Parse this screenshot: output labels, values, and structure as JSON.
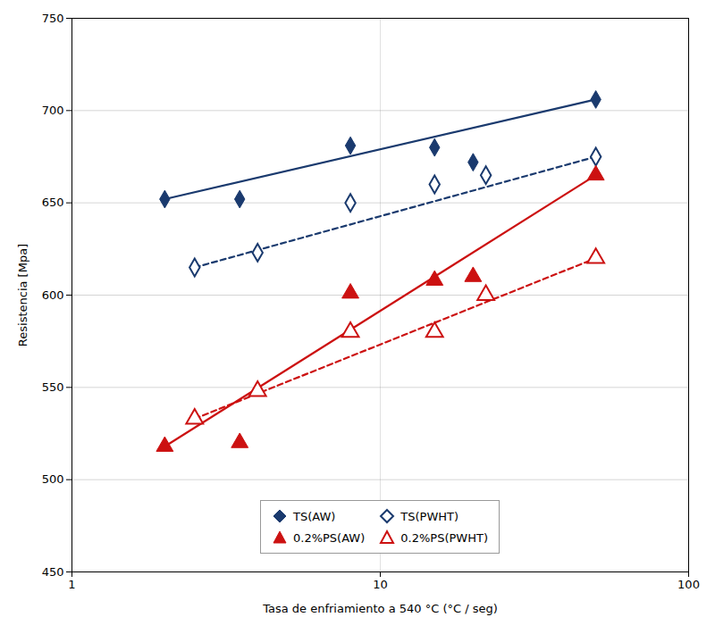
{
  "chart_data": {
    "type": "line",
    "xlabel": "Tasa de enfriamiento a 540 °C (°C / seg)",
    "ylabel": "Resistencia [Mpa]",
    "log": "x",
    "xlim": [
      1,
      100
    ],
    "xticks": [
      1,
      10,
      100
    ],
    "ylim": [
      450,
      750
    ],
    "yticks": [
      450,
      500,
      550,
      600,
      650,
      700,
      750
    ],
    "grid": true,
    "legend": "lower center",
    "series": [
      {
        "name": "TS(AW)",
        "color": "#1a3a6e",
        "marker": "diamond",
        "line_style": "solid",
        "x": [
          2.0,
          3.5,
          8.0,
          15.0,
          20.0,
          50.0
        ],
        "values": [
          652,
          652,
          681,
          680,
          672,
          706
        ],
        "line_x": [
          2.0,
          50.0
        ],
        "line_values": [
          652,
          706
        ]
      },
      {
        "name": "TS(PWHT)",
        "color": "#1a3a6e",
        "marker": "diamond-open",
        "line_style": "dashed",
        "x": [
          2.5,
          4.0,
          8.0,
          15.0,
          22.0,
          50.0
        ],
        "values": [
          615,
          623,
          650,
          660,
          665,
          675
        ],
        "line_x": [
          2.5,
          50.0
        ],
        "line_values": [
          615,
          675
        ]
      },
      {
        "name": "0.2%PS(AW)",
        "color": "#cc1111",
        "marker": "triangle",
        "line_style": "solid",
        "x": [
          2.0,
          3.5,
          8.0,
          15.0,
          20.0,
          50.0
        ],
        "values": [
          518,
          520,
          601,
          608,
          610,
          665
        ],
        "line_x": [
          2.0,
          50.0
        ],
        "line_values": [
          518,
          665
        ]
      },
      {
        "name": "0.2%PS(PWHT)",
        "color": "#cc1111",
        "marker": "triangle-open",
        "line_style": "dashed",
        "x": [
          2.5,
          4.0,
          8.0,
          15.0,
          22.0,
          50.0
        ],
        "values": [
          533,
          548,
          580,
          580,
          600,
          620
        ],
        "line_x": [
          2.5,
          50.0
        ],
        "line_values": [
          533,
          620
        ]
      }
    ]
  }
}
